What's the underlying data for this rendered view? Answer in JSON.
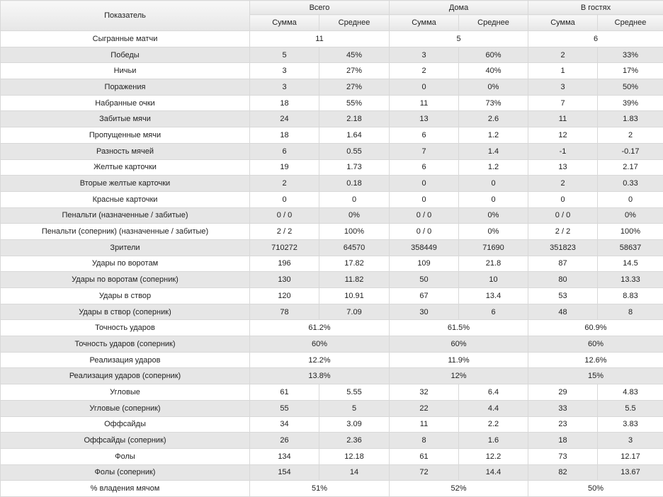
{
  "header": {
    "indicator": "Показатель",
    "groups": [
      "Всего",
      "Дома",
      "В гостях"
    ],
    "sum": "Сумма",
    "avg": "Среднее"
  },
  "rows": [
    {
      "label": "Сыгранные матчи",
      "merged": [
        "11",
        "5",
        "6"
      ]
    },
    {
      "label": "Победы",
      "cells": [
        "5",
        "45%",
        "3",
        "60%",
        "2",
        "33%"
      ]
    },
    {
      "label": "Ничьи",
      "cells": [
        "3",
        "27%",
        "2",
        "40%",
        "1",
        "17%"
      ]
    },
    {
      "label": "Поражения",
      "cells": [
        "3",
        "27%",
        "0",
        "0%",
        "3",
        "50%"
      ]
    },
    {
      "label": "Набранные очки",
      "cells": [
        "18",
        "55%",
        "11",
        "73%",
        "7",
        "39%"
      ]
    },
    {
      "label": "Забитые мячи",
      "cells": [
        "24",
        "2.18",
        "13",
        "2.6",
        "11",
        "1.83"
      ]
    },
    {
      "label": "Пропущенные мячи",
      "cells": [
        "18",
        "1.64",
        "6",
        "1.2",
        "12",
        "2"
      ]
    },
    {
      "label": "Разность мячей",
      "cells": [
        "6",
        "0.55",
        "7",
        "1.4",
        "-1",
        "-0.17"
      ]
    },
    {
      "label": "Желтые карточки",
      "cells": [
        "19",
        "1.73",
        "6",
        "1.2",
        "13",
        "2.17"
      ]
    },
    {
      "label": "Вторые желтые карточки",
      "cells": [
        "2",
        "0.18",
        "0",
        "0",
        "2",
        "0.33"
      ]
    },
    {
      "label": "Красные карточки",
      "cells": [
        "0",
        "0",
        "0",
        "0",
        "0",
        "0"
      ]
    },
    {
      "label": "Пенальти (назначенные / забитые)",
      "cells": [
        "0 / 0",
        "0%",
        "0 / 0",
        "0%",
        "0 / 0",
        "0%"
      ]
    },
    {
      "label": "Пенальти (соперник) (назначенные / забитые)",
      "cells": [
        "2 / 2",
        "100%",
        "0 / 0",
        "0%",
        "2 / 2",
        "100%"
      ]
    },
    {
      "label": "Зрители",
      "cells": [
        "710272",
        "64570",
        "358449",
        "71690",
        "351823",
        "58637"
      ]
    },
    {
      "label": "Удары по воротам",
      "cells": [
        "196",
        "17.82",
        "109",
        "21.8",
        "87",
        "14.5"
      ]
    },
    {
      "label": "Удары по воротам (соперник)",
      "cells": [
        "130",
        "11.82",
        "50",
        "10",
        "80",
        "13.33"
      ]
    },
    {
      "label": "Удары в створ",
      "cells": [
        "120",
        "10.91",
        "67",
        "13.4",
        "53",
        "8.83"
      ]
    },
    {
      "label": "Удары в створ (соперник)",
      "cells": [
        "78",
        "7.09",
        "30",
        "6",
        "48",
        "8"
      ]
    },
    {
      "label": "Точность ударов",
      "merged": [
        "61.2%",
        "61.5%",
        "60.9%"
      ]
    },
    {
      "label": "Точность ударов (соперник)",
      "merged": [
        "60%",
        "60%",
        "60%"
      ]
    },
    {
      "label": "Реализация ударов",
      "merged": [
        "12.2%",
        "11.9%",
        "12.6%"
      ]
    },
    {
      "label": "Реализация ударов (соперник)",
      "merged": [
        "13.8%",
        "12%",
        "15%"
      ]
    },
    {
      "label": "Угловые",
      "cells": [
        "61",
        "5.55",
        "32",
        "6.4",
        "29",
        "4.83"
      ]
    },
    {
      "label": "Угловые (соперник)",
      "cells": [
        "55",
        "5",
        "22",
        "4.4",
        "33",
        "5.5"
      ]
    },
    {
      "label": "Оффсайды",
      "cells": [
        "34",
        "3.09",
        "11",
        "2.2",
        "23",
        "3.83"
      ]
    },
    {
      "label": "Оффсайды (соперник)",
      "cells": [
        "26",
        "2.36",
        "8",
        "1.6",
        "18",
        "3"
      ]
    },
    {
      "label": "Фолы",
      "cells": [
        "134",
        "12.18",
        "61",
        "12.2",
        "73",
        "12.17"
      ]
    },
    {
      "label": "Фолы (соперник)",
      "cells": [
        "154",
        "14",
        "72",
        "14.4",
        "82",
        "13.67"
      ]
    },
    {
      "label": "% владения мячом",
      "merged": [
        "51%",
        "52%",
        "50%"
      ]
    }
  ]
}
